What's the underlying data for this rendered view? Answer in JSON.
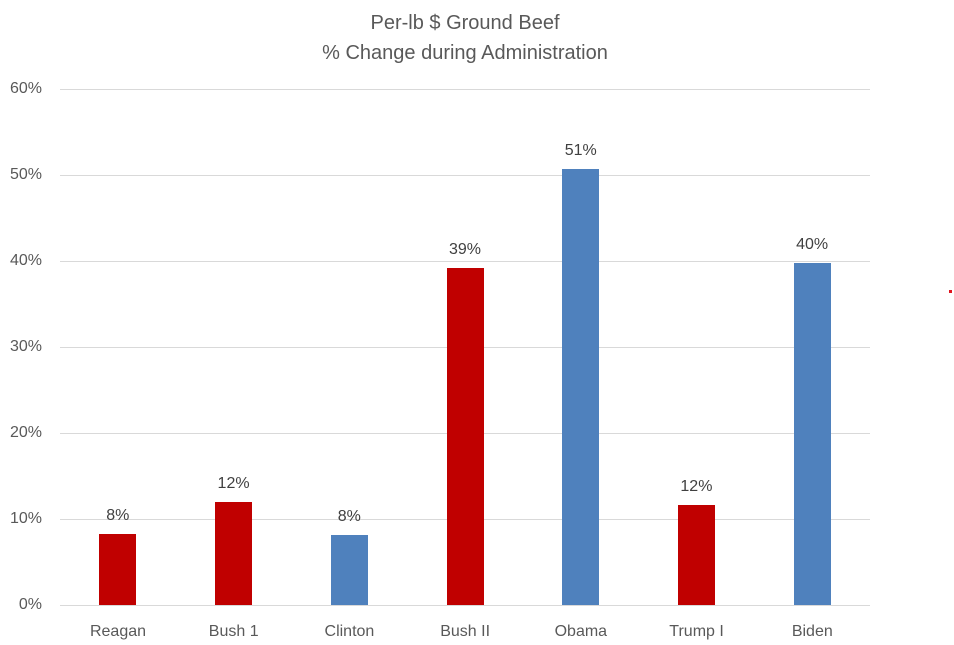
{
  "chart_data": {
    "type": "bar",
    "title": "Per-lb $ Ground Beef",
    "subtitle": "% Change during Administration",
    "title_lines": [
      "Per-lb $ Ground Beef",
      "% Change during Administration"
    ],
    "xlabel": "",
    "ylabel": "",
    "categories": [
      "Reagan",
      "Bush 1",
      "Clinton",
      "Bush II",
      "Obama",
      "Trump I",
      "Biden"
    ],
    "values": [
      8.2,
      12.0,
      8.1,
      39.2,
      50.7,
      11.6,
      39.8
    ],
    "data_labels": [
      "8%",
      "12%",
      "8%",
      "39%",
      "51%",
      "12%",
      "40%"
    ],
    "party": [
      "R",
      "R",
      "D",
      "R",
      "D",
      "R",
      "D"
    ],
    "bar_colors": [
      "#c00000",
      "#c00000",
      "#4f81bd",
      "#c00000",
      "#4f81bd",
      "#c00000",
      "#4f81bd"
    ],
    "ylim": [
      0,
      60
    ],
    "yticks": [
      0,
      10,
      20,
      30,
      40,
      50,
      60
    ],
    "ytick_labels": [
      "0%",
      "10%",
      "20%",
      "30%",
      "40%",
      "50%",
      "60%"
    ],
    "grid": true,
    "legend": null
  },
  "colors": {
    "republican": "#c00000",
    "democrat": "#4f81bd",
    "gridline": "#d9d9d9",
    "text": "#595959"
  }
}
